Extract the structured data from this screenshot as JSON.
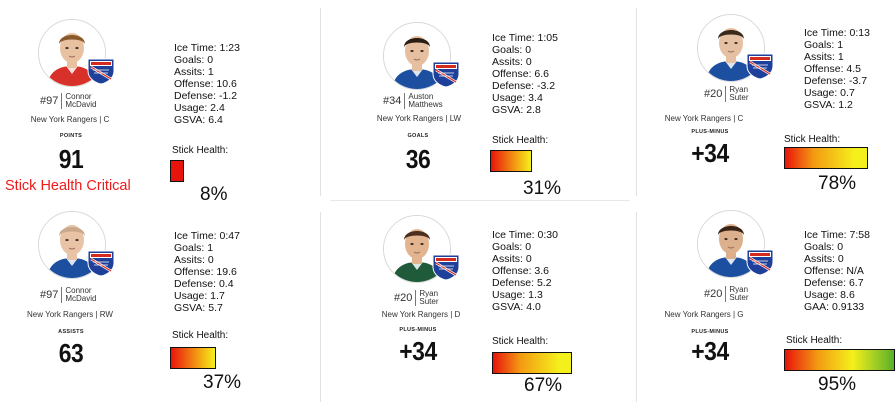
{
  "players": [
    {
      "number": "#97",
      "first": "Connor",
      "last": "McDavid",
      "team_line": "New York Rangers | C",
      "stat_label": "POINTS",
      "stat_value": "91",
      "lines": [
        "Ice Time: 1:23",
        "Goals: 0",
        "Assits: 1",
        "Offense: 10.6",
        "Defense: -1.2",
        "Usage: 2.4",
        "GSVA: 6.4"
      ],
      "stick_label": "Stick Health:",
      "stick_pct": "8%",
      "stick_health": 0.08,
      "alert": "Stick Health Critical",
      "jersey_color": "#d8312a",
      "hair": "#8a5a2c",
      "skin": "#e8c1a0"
    },
    {
      "number": "#34",
      "first": "Auston",
      "last": "Matthews",
      "team_line": "New York Rangers | LW",
      "stat_label": "GOALS",
      "stat_value": "36",
      "lines": [
        "Ice Time: 1:05",
        "Goals: 0",
        "Assits: 0",
        "Offense: 6.6",
        "Defense: -3.2",
        "Usage: 3.4",
        "GSVA: 2.8"
      ],
      "stick_label": "Stick Health:",
      "stick_pct": "31%",
      "stick_health": 0.31,
      "alert": "",
      "jersey_color": "#1d4fa0",
      "hair": "#2a1d14",
      "skin": "#e5bf9f"
    },
    {
      "number": "#20",
      "first": "Ryan",
      "last": "Suter",
      "team_line": "New York Rangers | C",
      "stat_label": "PLUS-MINUS",
      "stat_value": "+34",
      "lines": [
        "Ice Time: 0:13",
        "Goals: 1",
        "Assits: 1",
        "Offense: 4.5",
        "Defense: -3.7",
        "Usage: 0.7",
        "GSVA: 1.2"
      ],
      "stick_label": "Stick Health:",
      "stick_pct": "78%",
      "stick_health": 0.78,
      "alert": "",
      "jersey_color": "#1d4fa0",
      "hair": "#3a2a1c",
      "skin": "#e6c0a2"
    },
    {
      "number": "#97",
      "first": "Connor",
      "last": "McDavid",
      "team_line": "New York Rangers | RW",
      "stat_label": "ASSISTS",
      "stat_value": "63",
      "lines": [
        "Ice Time: 0:47",
        "Goals: 1",
        "Assits: 0",
        "Offense: 19.6",
        "Defense: 0.4",
        "Usage: 1.7",
        "GSVA: 5.7"
      ],
      "stick_label": "Stick Health:",
      "stick_pct": "37%",
      "stick_health": 0.37,
      "alert": "",
      "jersey_color": "#1d4fa0",
      "hair": "#c9a98a",
      "skin": "#e9c3a5"
    },
    {
      "number": "#20",
      "first": "Ryan",
      "last": "Suter",
      "team_line": "New York Rangers | D",
      "stat_label": "PLUS-MINUS",
      "stat_value": "+34",
      "lines": [
        "Ice Time: 0:30",
        "Goals: 0",
        "Assits: 0",
        "Offense: 3.6",
        "Defense: 5.2",
        "Usage: 1.3",
        "GSVA: 4.0"
      ],
      "stick_label": "Stick Health:",
      "stick_pct": "67%",
      "stick_health": 0.67,
      "alert": "",
      "jersey_color": "#1f5a3a",
      "hair": "#4a2e1e",
      "skin": "#e2b48f"
    },
    {
      "number": "#20",
      "first": "Ryan",
      "last": "Suter",
      "team_line": "New York Rangers | G",
      "stat_label": "PLUS-MINUS",
      "stat_value": "+34",
      "lines": [
        "Ice Time: 7:58",
        "Goals: 0",
        "Assits: 0",
        "Offense: N/A",
        "Defense: 6.7",
        "Usage: 8.6",
        "GAA: 0.9133"
      ],
      "stick_label": "Stick Health:",
      "stick_pct": "95%",
      "stick_health": 0.95,
      "alert": "",
      "jersey_color": "#1d4fa0",
      "hair": "#3a2416",
      "skin": "#dcb08c"
    }
  ],
  "colors": {
    "alert": "#ee1a1a",
    "gradient_red": "#e8140c",
    "gradient_orange": "#f39a12",
    "gradient_yellow": "#f4f01c",
    "gradient_green": "#5ab02a",
    "rangers_blue": "#1e3f9a",
    "rangers_red": "#d52b1e"
  },
  "icons": [
    "player-headshot",
    "rangers-logo"
  ]
}
